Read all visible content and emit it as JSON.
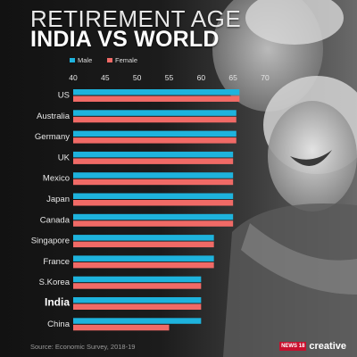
{
  "header": {
    "title_line1": "RETIREMENT AGE",
    "title_line2": "INDIA VS WORLD"
  },
  "footer": {
    "source": "Source: Economic Survey, 2018-19",
    "brand_box": "NEWS 18",
    "brand_text": "creative"
  },
  "colors": {
    "male": "#1eb3dd",
    "female": "#f06a66",
    "text": "#e8e8e8",
    "highlight": "#ffffff"
  },
  "chart_data": {
    "type": "bar",
    "orientation": "horizontal",
    "title": "RETIREMENT AGE INDIA VS WORLD",
    "xlim": [
      40,
      70
    ],
    "xticks": [
      40,
      45,
      50,
      55,
      60,
      65,
      70
    ],
    "categories": [
      "US",
      "Australia",
      "Germany",
      "UK",
      "Mexico",
      "Japan",
      "Canada",
      "Singapore",
      "France",
      "S.Korea",
      "India",
      "China"
    ],
    "highlight_category": "India",
    "legend_position": "top",
    "series": [
      {
        "name": "Male",
        "values": [
          66,
          65.5,
          65.5,
          65,
          65,
          65,
          65,
          62,
          62,
          60,
          60,
          60
        ]
      },
      {
        "name": "Female",
        "values": [
          66,
          65.5,
          65.5,
          65,
          65,
          65,
          65,
          62,
          62,
          60,
          60,
          55
        ]
      }
    ]
  }
}
